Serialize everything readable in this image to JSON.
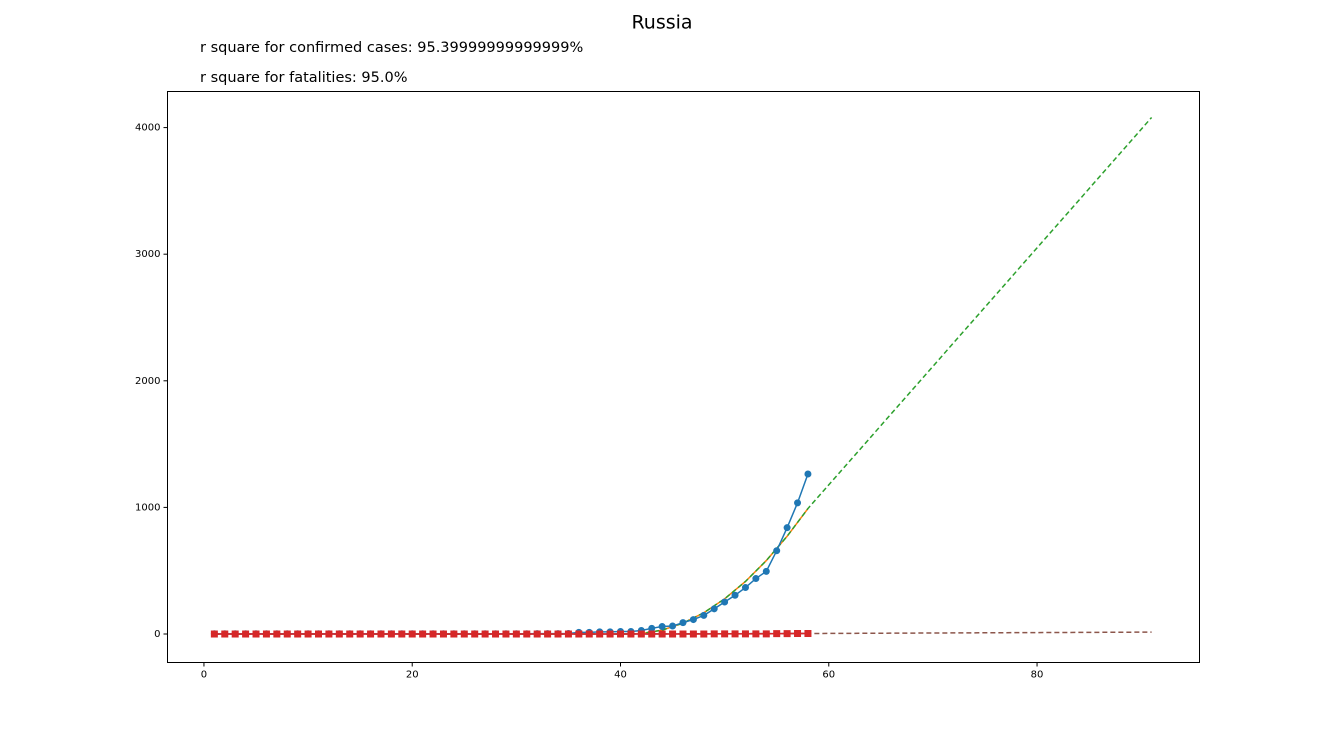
{
  "chart_data": {
    "type": "line",
    "title": "Russia",
    "annotations": [
      "r square for confirmed cases: 95.39999999999999%",
      "r square for fatalities: 95.0%"
    ],
    "xlim": [
      -3.5,
      95.6
    ],
    "ylim": [
      -225,
      4285
    ],
    "xticks": [
      0,
      20,
      40,
      60,
      80
    ],
    "yticks": [
      0,
      1000,
      2000,
      3000,
      4000
    ],
    "grid": false,
    "series": [
      {
        "color": "#ff7f0e",
        "dash": false,
        "marker": null,
        "x": [
          1,
          10,
          20,
          30,
          38,
          40,
          42,
          44,
          46,
          48,
          50,
          52,
          54,
          56,
          58
        ],
        "values": [
          0,
          0,
          0,
          0,
          0,
          0,
          3.4,
          30.9,
          85.8,
          168,
          278,
          415,
          580,
          772,
          991
        ]
      },
      {
        "color": "#2ca02c",
        "dash": true,
        "marker": null,
        "x": [
          1,
          10,
          20,
          30,
          38,
          40,
          42,
          44,
          46,
          48,
          50,
          52,
          54,
          56,
          58,
          65,
          70,
          75,
          80,
          85,
          91
        ],
        "values": [
          0,
          0,
          0,
          0,
          0,
          0,
          3.4,
          30.9,
          85.8,
          168,
          278,
          415,
          580,
          772,
          991,
          1646,
          2114,
          2582,
          3050,
          3518,
          4080
        ]
      },
      {
        "color": "#1f77b4",
        "dash": false,
        "marker": "circle",
        "x": [
          1,
          2,
          3,
          4,
          5,
          6,
          7,
          8,
          9,
          10,
          11,
          12,
          13,
          14,
          15,
          16,
          17,
          18,
          19,
          20,
          21,
          22,
          23,
          24,
          25,
          26,
          27,
          28,
          29,
          30,
          31,
          32,
          33,
          34,
          35,
          36,
          37,
          38,
          39,
          40,
          41,
          42,
          43,
          44,
          45,
          46,
          47,
          48,
          49,
          50,
          51,
          52,
          53,
          54,
          55,
          56,
          57,
          58
        ],
        "values": [
          2,
          2,
          2,
          2,
          2,
          2,
          2,
          2,
          2,
          2,
          2,
          2,
          2,
          2,
          2,
          2,
          2,
          2,
          2,
          2,
          2,
          2,
          2,
          2,
          2,
          2,
          2,
          2,
          2,
          2,
          2,
          3,
          3,
          3,
          4,
          13,
          13,
          17,
          17,
          20,
          20,
          28,
          45,
          59,
          63,
          90,
          114,
          147,
          199,
          253,
          306,
          367,
          438,
          495,
          658,
          840,
          1036,
          1264
        ]
      },
      {
        "color": "#9467bd",
        "dash": false,
        "marker": null,
        "x": [
          1,
          40,
          58
        ],
        "values": [
          0,
          0,
          4
        ]
      },
      {
        "color": "#8c564b",
        "dash": true,
        "marker": null,
        "x": [
          1,
          40,
          58,
          91
        ],
        "values": [
          0,
          0,
          4,
          15
        ]
      },
      {
        "color": "#d62728",
        "dash": false,
        "marker": "square",
        "x": [
          1,
          2,
          3,
          4,
          5,
          6,
          7,
          8,
          9,
          10,
          11,
          12,
          13,
          14,
          15,
          16,
          17,
          18,
          19,
          20,
          21,
          22,
          23,
          24,
          25,
          26,
          27,
          28,
          29,
          30,
          31,
          32,
          33,
          34,
          35,
          36,
          37,
          38,
          39,
          40,
          41,
          42,
          43,
          44,
          45,
          46,
          47,
          48,
          49,
          50,
          51,
          52,
          53,
          54,
          55,
          56,
          57,
          58
        ],
        "values": [
          0,
          0,
          0,
          0,
          0,
          0,
          0,
          0,
          0,
          0,
          0,
          0,
          0,
          0,
          0,
          0,
          0,
          0,
          0,
          0,
          0,
          0,
          0,
          0,
          0,
          0,
          0,
          0,
          0,
          0,
          0,
          0,
          0,
          0,
          0,
          0,
          0,
          0,
          0,
          0,
          0,
          0,
          0,
          0,
          0,
          0,
          0,
          0,
          1,
          1,
          1,
          1,
          1,
          1,
          3,
          3,
          4,
          4
        ]
      }
    ]
  }
}
